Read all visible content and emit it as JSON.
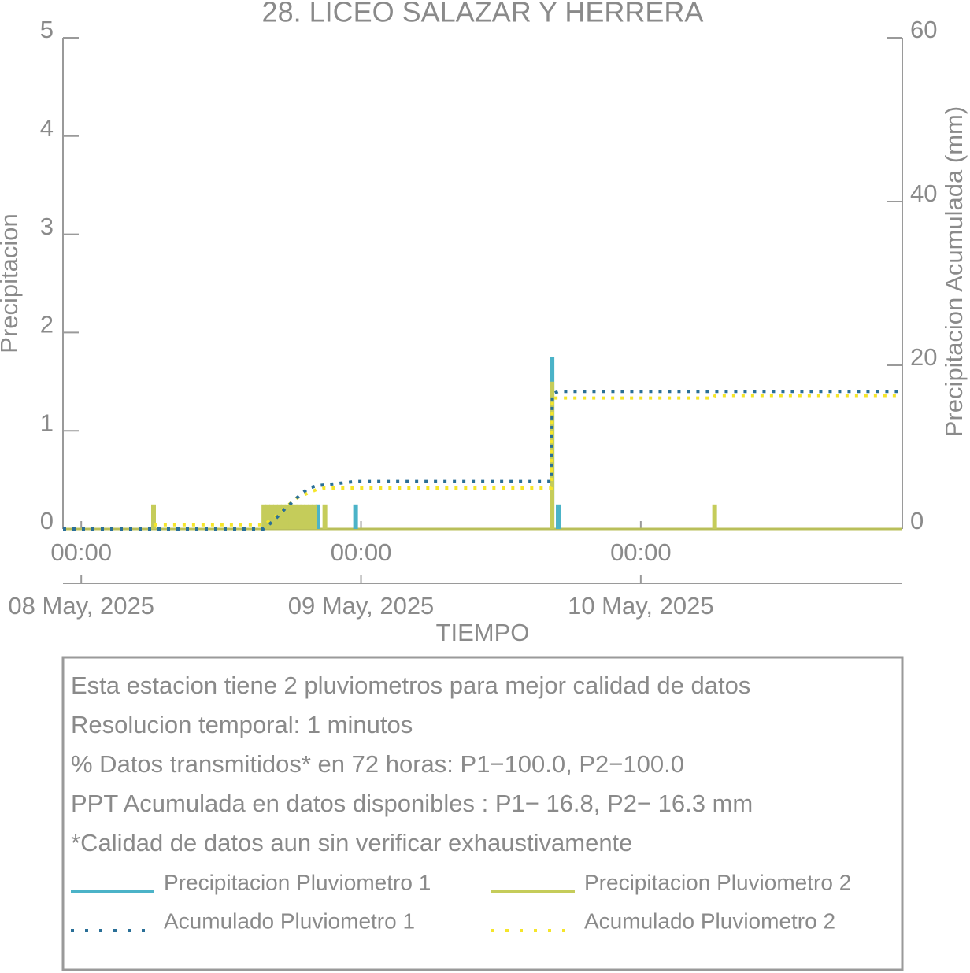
{
  "chart_data": {
    "type": "bar",
    "title": "28. LICEO SALAZAR Y HERRERA",
    "xlabel": "TIEMPO",
    "ylabel": "Precipitacion",
    "y2label": "Precipitacion Acumulada (mm)",
    "xlim": [
      "2025-05-07T22:26",
      "2025-05-10T22:26"
    ],
    "xticks": [
      {
        "value": "2025-05-08T00:00",
        "label": "00:00"
      },
      {
        "value": "2025-05-09T00:00",
        "label": "00:00"
      },
      {
        "value": "2025-05-10T00:00",
        "label": "00:00"
      }
    ],
    "xtick_dates": [
      "08 May, 2025",
      "09 May, 2025",
      "10 May, 2025"
    ],
    "ylim": [
      0,
      5
    ],
    "yticks": [
      0,
      1,
      2,
      3,
      4,
      5
    ],
    "y2lim": [
      0,
      60
    ],
    "y2ticks": [
      0,
      20,
      40,
      60
    ],
    "series": [
      {
        "name": "Precipitacion Pluviometro 1",
        "type": "bar",
        "color": "#4bb3c8",
        "x": [
          "2025-05-08T20:18",
          "2025-05-08T23:32",
          "2025-05-09T16:23",
          "2025-05-09T16:55"
        ],
        "values": [
          0.25,
          0.25,
          1.75,
          0.25
        ]
      },
      {
        "name": "Precipitacion Pluviometro 2",
        "type": "bar",
        "color": "#c5cc5a",
        "x": [
          "2025-05-08T06:12",
          "2025-05-08T15:40",
          "2025-05-08T16:00",
          "2025-05-08T16:20",
          "2025-05-08T16:40",
          "2025-05-08T17:00",
          "2025-05-08T17:20",
          "2025-05-08T17:40",
          "2025-05-08T18:00",
          "2025-05-08T18:20",
          "2025-05-08T18:40",
          "2025-05-08T19:00",
          "2025-05-08T19:20",
          "2025-05-08T19:40",
          "2025-05-08T20:00",
          "2025-05-08T20:54",
          "2025-05-09T16:23",
          "2025-05-10T06:20"
        ],
        "values": [
          0.25,
          0.25,
          0.25,
          0.25,
          0.25,
          0.25,
          0.25,
          0.25,
          0.25,
          0.25,
          0.25,
          0.25,
          0.25,
          0.25,
          0.25,
          0.25,
          1.5,
          0.25
        ]
      },
      {
        "name": "Acumulado Pluviometro 1",
        "type": "line",
        "axis": "y2",
        "color": "#2a6f97",
        "x": [
          "2025-05-07T22:26",
          "2025-05-08T15:38",
          "2025-05-08T16:30",
          "2025-05-08T17:30",
          "2025-05-08T18:30",
          "2025-05-08T19:30",
          "2025-05-08T20:18",
          "2025-05-08T23:32",
          "2025-05-09T16:20",
          "2025-05-09T16:25",
          "2025-05-09T16:55",
          "2025-05-10T22:26"
        ],
        "values": [
          0,
          0,
          1.0,
          2.5,
          3.8,
          5.0,
          5.3,
          5.8,
          5.8,
          16.5,
          16.8,
          16.8
        ]
      },
      {
        "name": "Acumulado Pluviometro 2",
        "type": "line",
        "axis": "y2",
        "color": "#f5e52a",
        "x": [
          "2025-05-07T22:26",
          "2025-05-08T06:10",
          "2025-05-08T06:15",
          "2025-05-08T15:38",
          "2025-05-08T16:30",
          "2025-05-08T17:30",
          "2025-05-08T18:30",
          "2025-05-08T20:10",
          "2025-05-08T20:54",
          "2025-05-09T16:20",
          "2025-05-09T16:25",
          "2025-05-10T06:18",
          "2025-05-10T06:22",
          "2025-05-10T22:26"
        ],
        "values": [
          0,
          0,
          0.5,
          0.5,
          1.3,
          2.6,
          3.8,
          4.8,
          5.0,
          5.0,
          16.0,
          16.0,
          16.3,
          16.3
        ]
      }
    ],
    "notes": [
      "Esta estacion tiene 2 pluviometros para mejor calidad de datos",
      "Resolucion temporal: 1 minutos",
      "% Datos transmitidos* en 72 horas: P1−100.0, P2−100.0",
      "PPT Acumulada en datos disponibles : P1− 16.8, P2− 16.3 mm",
      "*Calidad de datos aun sin verificar exhaustivamente"
    ]
  }
}
